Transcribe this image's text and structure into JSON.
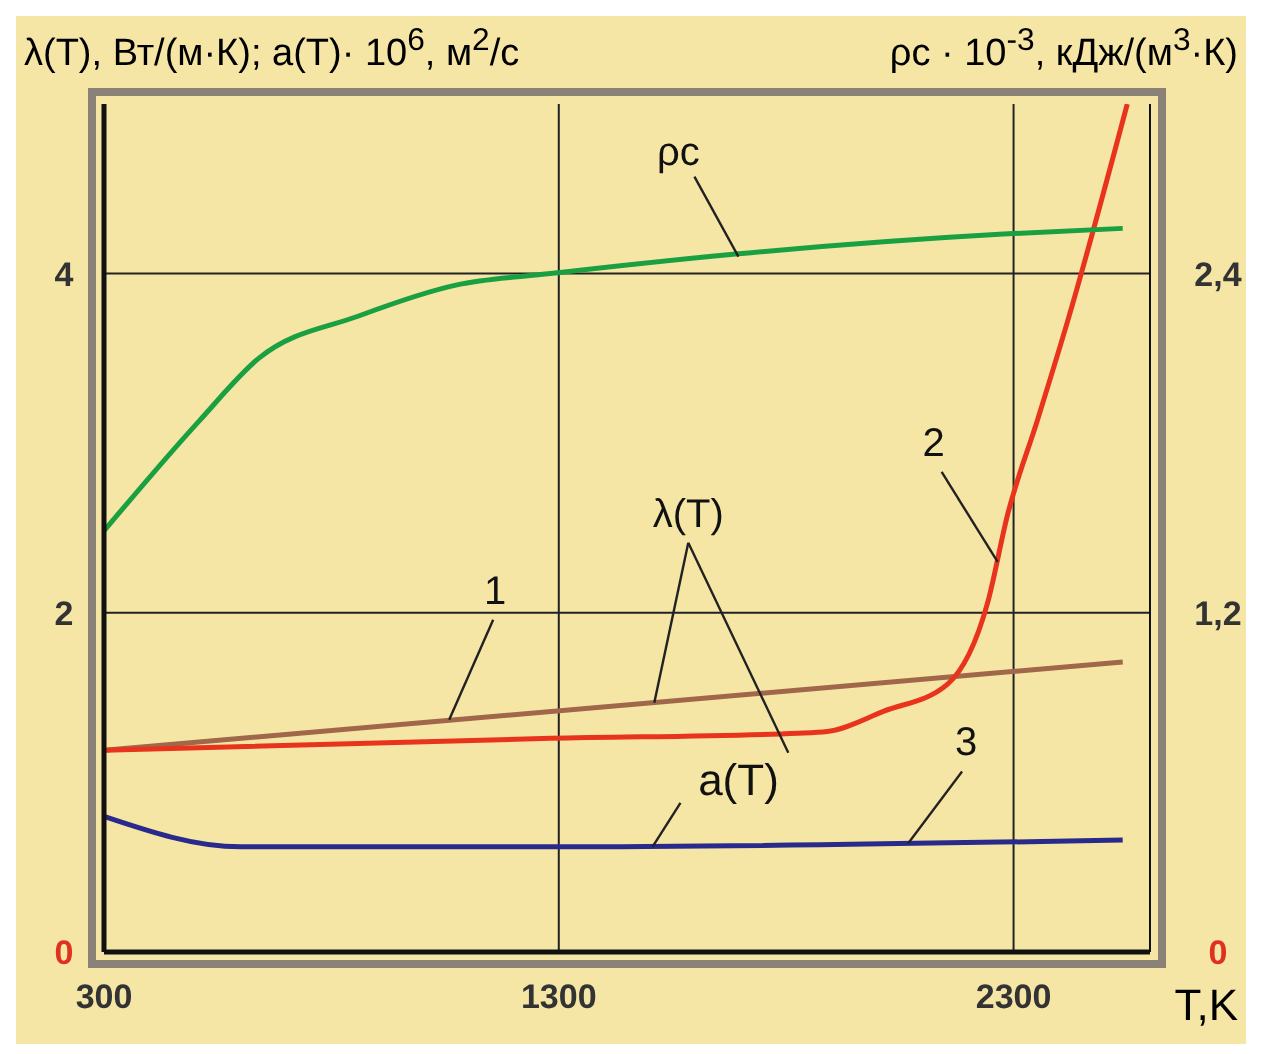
{
  "chart_data": {
    "type": "line",
    "xlabel": "T,K",
    "ylabel": "λ(T), Вт/(м·К); a(T)· 10$^{6}$, м$^{2}$/с",
    "y2label": "ρс · 10$^{-3}$, кДж/(м$^{3}$·К)",
    "series": [
      {
        "color": "#a0674a",
        "x": [
          300,
          2540
        ],
        "values": [
          1.19,
          1.71
        ]
      },
      {
        "color": "#e8341c",
        "x": [
          300,
          1282,
          1826,
          1890,
          2015,
          2155,
          2243,
          2287,
          2353,
          2420,
          2550
        ],
        "values": [
          1.19,
          1.26,
          1.29,
          1.3,
          1.42,
          1.58,
          2.06,
          2.58,
          3.14,
          3.73,
          5.0
        ]
      },
      {
        "color": "#2a2a8c",
        "x": [
          300,
          600,
          686,
          1282,
          2540
        ],
        "values": [
          0.8,
          0.62,
          0.62,
          0.62,
          0.66
        ]
      },
      {
        "color": "#1aa040",
        "axis": "y2",
        "x": [
          300,
          510,
          640,
          860,
          1076,
          1282,
          1695,
          2278,
          2540
        ],
        "values": [
          1.49,
          1.88,
          2.1,
          2.25,
          2.36,
          2.4,
          2.47,
          2.54,
          2.56
        ]
      }
    ],
    "annotations": [
      {
        "text": "ρc",
        "x": 1695,
        "y": 4.1
      },
      {
        "text": "1",
        "x": 1059,
        "y": 1.37
      },
      {
        "text": "2",
        "x": 2265,
        "y": 2.3
      },
      {
        "text": "λ(T)",
        "x": 1510,
        "y": 1.47
      },
      {
        "text": "a(T)",
        "x": 1506,
        "y": 0.62
      },
      {
        "text": "3",
        "x": 2068,
        "y": 0.64
      }
    ],
    "xlim": [
      300,
      2600
    ],
    "xticks": [
      300,
      1300,
      2300
    ],
    "ylim": [
      0,
      5
    ],
    "yticks": [
      0,
      2,
      4
    ],
    "y2lim": [
      0,
      3
    ],
    "y2ticks": [
      0,
      {
        "value": 1.2,
        "label": "1,2"
      },
      {
        "value": 2.4,
        "label": "2,4"
      }
    ],
    "grid": true,
    "marker": "none",
    "line_style": "solid"
  }
}
